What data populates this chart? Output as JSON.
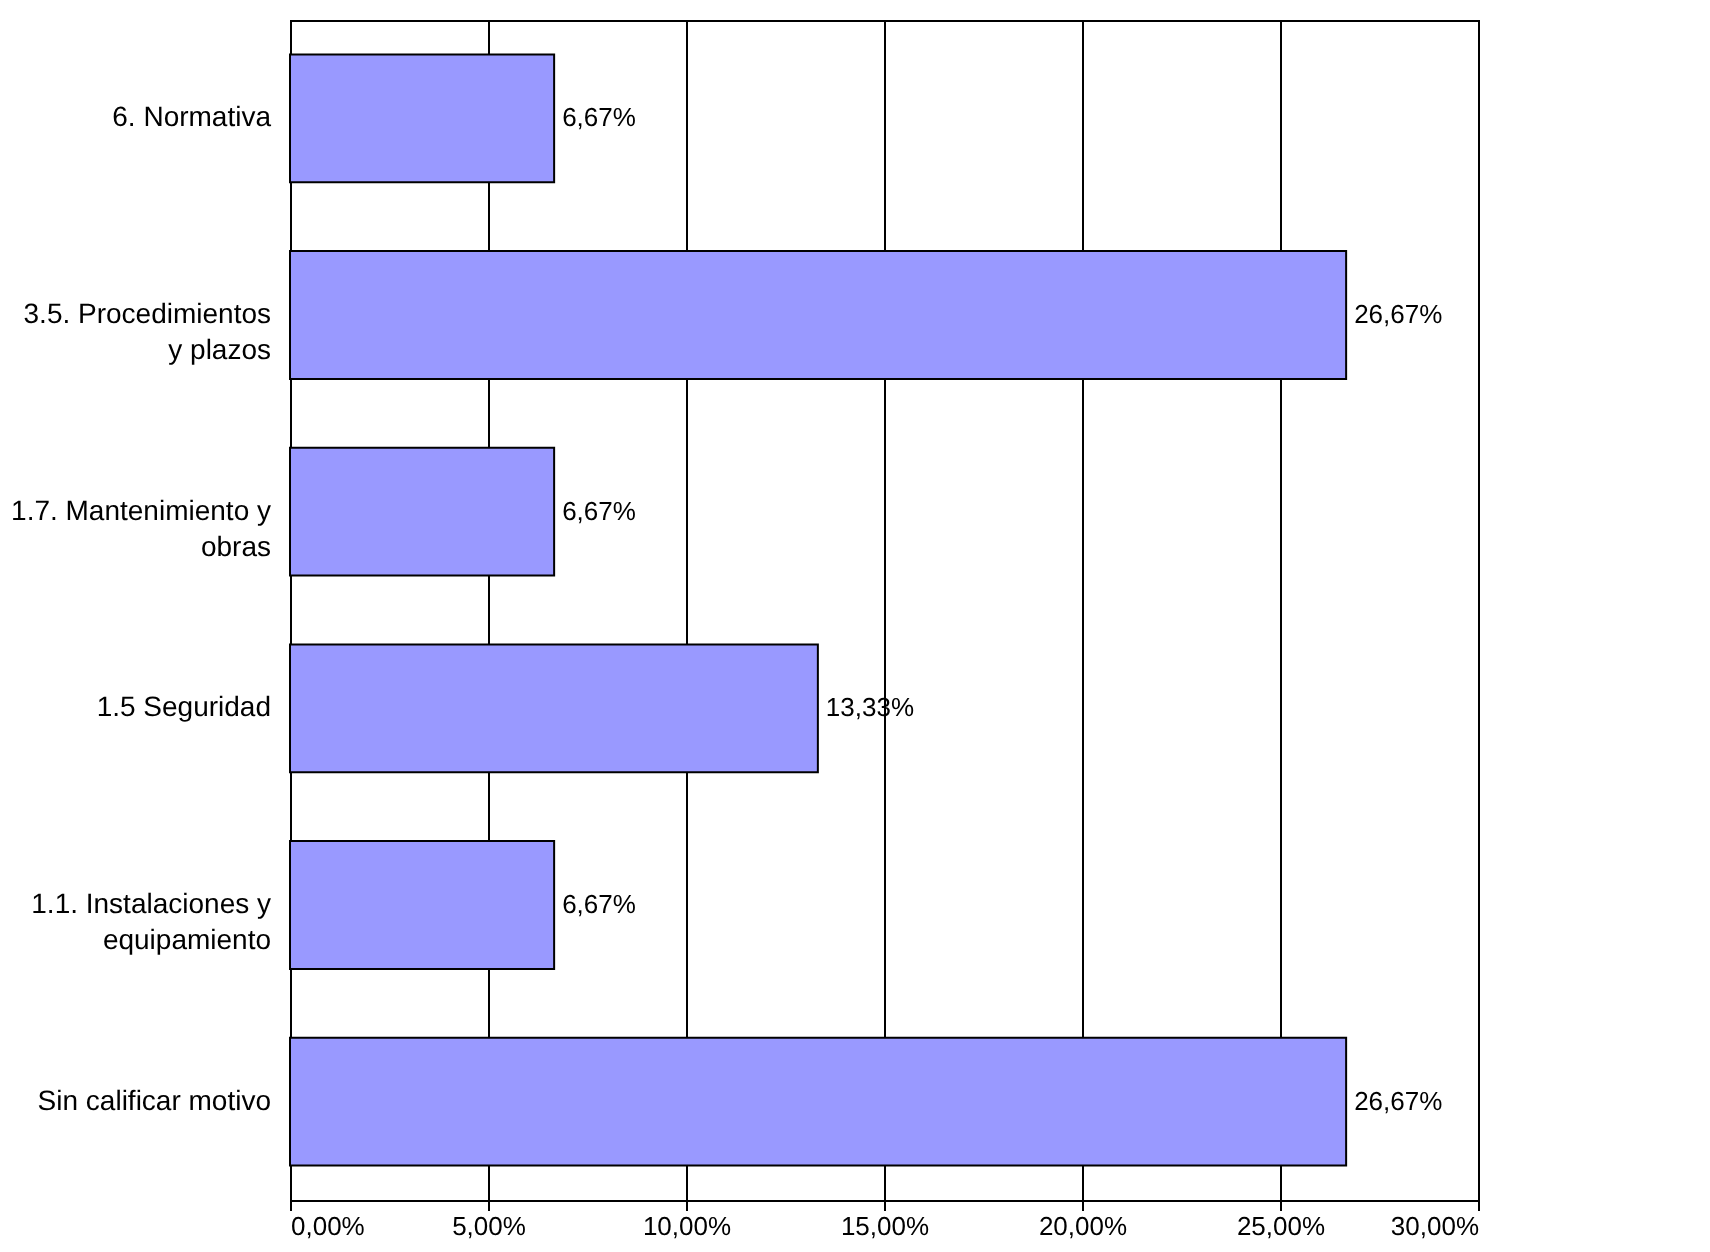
{
  "chart_data": {
    "type": "bar",
    "orientation": "horizontal",
    "categories": [
      "6. Normativa",
      "3.5. Procedimientos y plazos",
      "1.7. Mantenimiento y obras",
      "1.5  Seguridad",
      "1.1. Instalaciones y equipamiento",
      "Sin calificar motivo"
    ],
    "values": [
      6.67,
      26.67,
      6.67,
      13.33,
      6.67,
      26.67
    ],
    "value_labels": [
      "6,67%",
      "26,67%",
      "6,67%",
      "13,33%",
      "6,67%",
      "26,67%"
    ],
    "color": "#9999ff",
    "xlim": [
      0,
      30
    ],
    "xticks": [
      {
        "value": 0,
        "label": "0,00%"
      },
      {
        "value": 5,
        "label": "5,00%"
      },
      {
        "value": 10,
        "label": "10,00%"
      },
      {
        "value": 15,
        "label": "15,00%"
      },
      {
        "value": 20,
        "label": "20,00%"
      },
      {
        "value": 25,
        "label": "25,00%"
      },
      {
        "value": 30,
        "label": "30,00%"
      }
    ],
    "grid": "x"
  }
}
